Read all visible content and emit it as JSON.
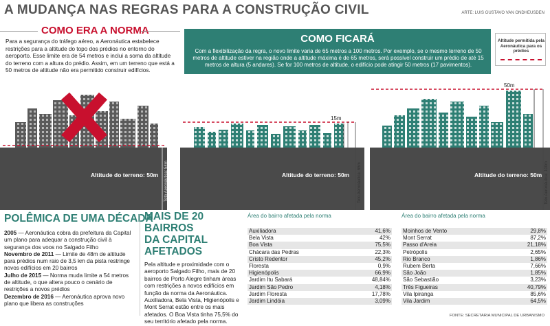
{
  "header": {
    "title": "A MUDANÇA NAS REGRAS PARA A CONSTRUÇÃO CIVIL",
    "credit": "ARTE: LUIS GUSTAVO VAN ONDHEUSDEN"
  },
  "como_era": {
    "title": "COMO ERA A NORMA",
    "text": "Para a segurança do tráfego aéreo, a Aeronáutica estabelece restrições para a altitude do topo dos prédios no entorno do aeroporto. Esse limite era de 54 metros e inclui a soma da altitude do terreno com a altura do prédio. Assim, em um terreno que está a 50 metros de altitude não era permitido construir edifícios."
  },
  "como_ficara": {
    "title": "COMO FICARÁ",
    "text": "Com a flexibilização da regra, o novo limite varia de 65 metros a 100 metros. Por exemplo, se o mesmo terreno de 50 metros de altitude estiver na região onde a altitude máxima é de 65 metros, será possível construir um prédio de até 15 metros de altura (5 andares). Se for 100 metros de altitude, o edifício pode atingir 50 metros (17 pavimentos)."
  },
  "legend": {
    "text": "Altitude permitida pela Aeronáutica para os prédios",
    "color": "#c8102e"
  },
  "scenes": {
    "ground_label": "Altitude do terreno: 50m",
    "teto_54": "Teto Aeronáutica: 54m",
    "teto_65": "Teto Aeronáutica: 65m",
    "teto_100": "Teto Aeronáutica: 100m",
    "height_15": "15m",
    "height_50": "50m"
  },
  "polemica": {
    "title": "POLÊMICA DE UMA DÉCADA",
    "items": [
      {
        "year": "2005",
        "text": " — Aeronáutica cobra da prefeitura da Capital um plano para adequar a construção civil à segurança dos voos no Salgado Filho"
      },
      {
        "year": "Novembro de 2011",
        "text": " — Limite de 48m de altitude para prédios num raio de 3,5 km da pista restringe novos edifícios em 20 bairros"
      },
      {
        "year": "Julho de 2015",
        "text": " — Norma muda limite a 54 metros de altitude, o que altera pouco o cenário de restrições a novos prédios"
      },
      {
        "year": "Dezembro de 2016",
        "text": " — Aeronáutica aprova novo plano que libera as construções"
      }
    ]
  },
  "bairros": {
    "title_line1": "MAIS DE 20 BAIRROS",
    "title_line2": "DA CAPITAL AFETADOS",
    "text": "Pela altitude e proximidade com o aeroporto Salgado Filho, mais de 20 bairros de Porto Alegre tinham áreas com restrições a novos edifícios em função da norma da Aeronáutica. Auxiliadora, Bela Vista, Higienópolis e Mont Serrat estão entre os mais afetados. O Boa Vista tinha 75,5% do seu território afetado pela norma."
  },
  "table1": {
    "header": "Área do bairro afetada pela norma",
    "rows": [
      {
        "name": "Auxiliadora",
        "value": "41,6%"
      },
      {
        "name": "Bela Vista",
        "value": "42%"
      },
      {
        "name": "Boa Vista",
        "value": "75,5%"
      },
      {
        "name": "Chácara das Pedras",
        "value": "22,3%"
      },
      {
        "name": "Cristo Redentor",
        "value": "45,2%"
      },
      {
        "name": "Floresta",
        "value": "0,9%"
      },
      {
        "name": "Higienópolis",
        "value": "66,9%"
      },
      {
        "name": "Jardim Itu Sabará",
        "value": "48,84%"
      },
      {
        "name": "Jardim São Pedro",
        "value": "4,18%"
      },
      {
        "name": "Jardim Floresta",
        "value": "17,78%"
      },
      {
        "name": "Jardim Lindóia",
        "value": "3,09%"
      }
    ]
  },
  "table2": {
    "header": "Área do bairro afetada pela norma",
    "rows": [
      {
        "name": "Moinhos de Vento",
        "value": "29,8%"
      },
      {
        "name": "Mont Serrat",
        "value": "87,2%"
      },
      {
        "name": "Passo d'Areia",
        "value": "21,18%"
      },
      {
        "name": "Petrópolis",
        "value": "2,65%"
      },
      {
        "name": "Rio Branco",
        "value": "1,86%"
      },
      {
        "name": "Rubem Berta",
        "value": "7,66%"
      },
      {
        "name": "São João",
        "value": "1,85%"
      },
      {
        "name": "São Sebastião",
        "value": "3,23%"
      },
      {
        "name": "Três Figueiras",
        "value": "40,79%"
      },
      {
        "name": "Vila Ipiranga",
        "value": "85,6%"
      },
      {
        "name": "Vila Jardim",
        "value": "64,5%"
      }
    ]
  },
  "source": "FONTE: SECRETARIA MUNICIPAL DE URBANISMO",
  "colors": {
    "accent": "#2e7f74",
    "red": "#c8102e",
    "ground": "#444444",
    "building": "#2e7f74",
    "building_gray": "#555555"
  }
}
